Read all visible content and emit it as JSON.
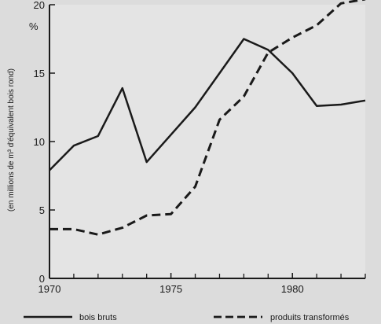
{
  "chart_data": {
    "type": "line",
    "title": "",
    "xlabel": "",
    "ylabel": "(en millions de m³ d'équivalent bois rond)",
    "y_unit_label": "%",
    "xlim": [
      1970,
      1983
    ],
    "ylim": [
      0,
      20
    ],
    "x_ticks": [
      1970,
      1975,
      1980
    ],
    "y_ticks": [
      0,
      5,
      10,
      15,
      20
    ],
    "x_minor_ticks": [
      1971,
      1972,
      1973,
      1974,
      1976,
      1977,
      1978,
      1979,
      1981,
      1982,
      1983
    ],
    "grid": false,
    "legend_position": "bottom",
    "x": [
      1970,
      1971,
      1972,
      1973,
      1974,
      1975,
      1976,
      1977,
      1978,
      1979,
      1980,
      1981,
      1982,
      1983
    ],
    "series": [
      {
        "name": "bois bruts",
        "style": "solid",
        "color": "#1a1a1a",
        "values": [
          7.9,
          9.7,
          10.4,
          13.9,
          8.5,
          10.5,
          12.5,
          15.0,
          17.5,
          16.7,
          15.0,
          12.6,
          12.7,
          13.0
        ]
      },
      {
        "name": "produits transformés",
        "style": "dashed",
        "color": "#1a1a1a",
        "values": [
          3.6,
          3.6,
          3.2,
          3.7,
          4.6,
          4.7,
          6.7,
          11.6,
          13.3,
          16.5,
          17.6,
          18.5,
          20.1,
          20.4
        ]
      }
    ]
  }
}
